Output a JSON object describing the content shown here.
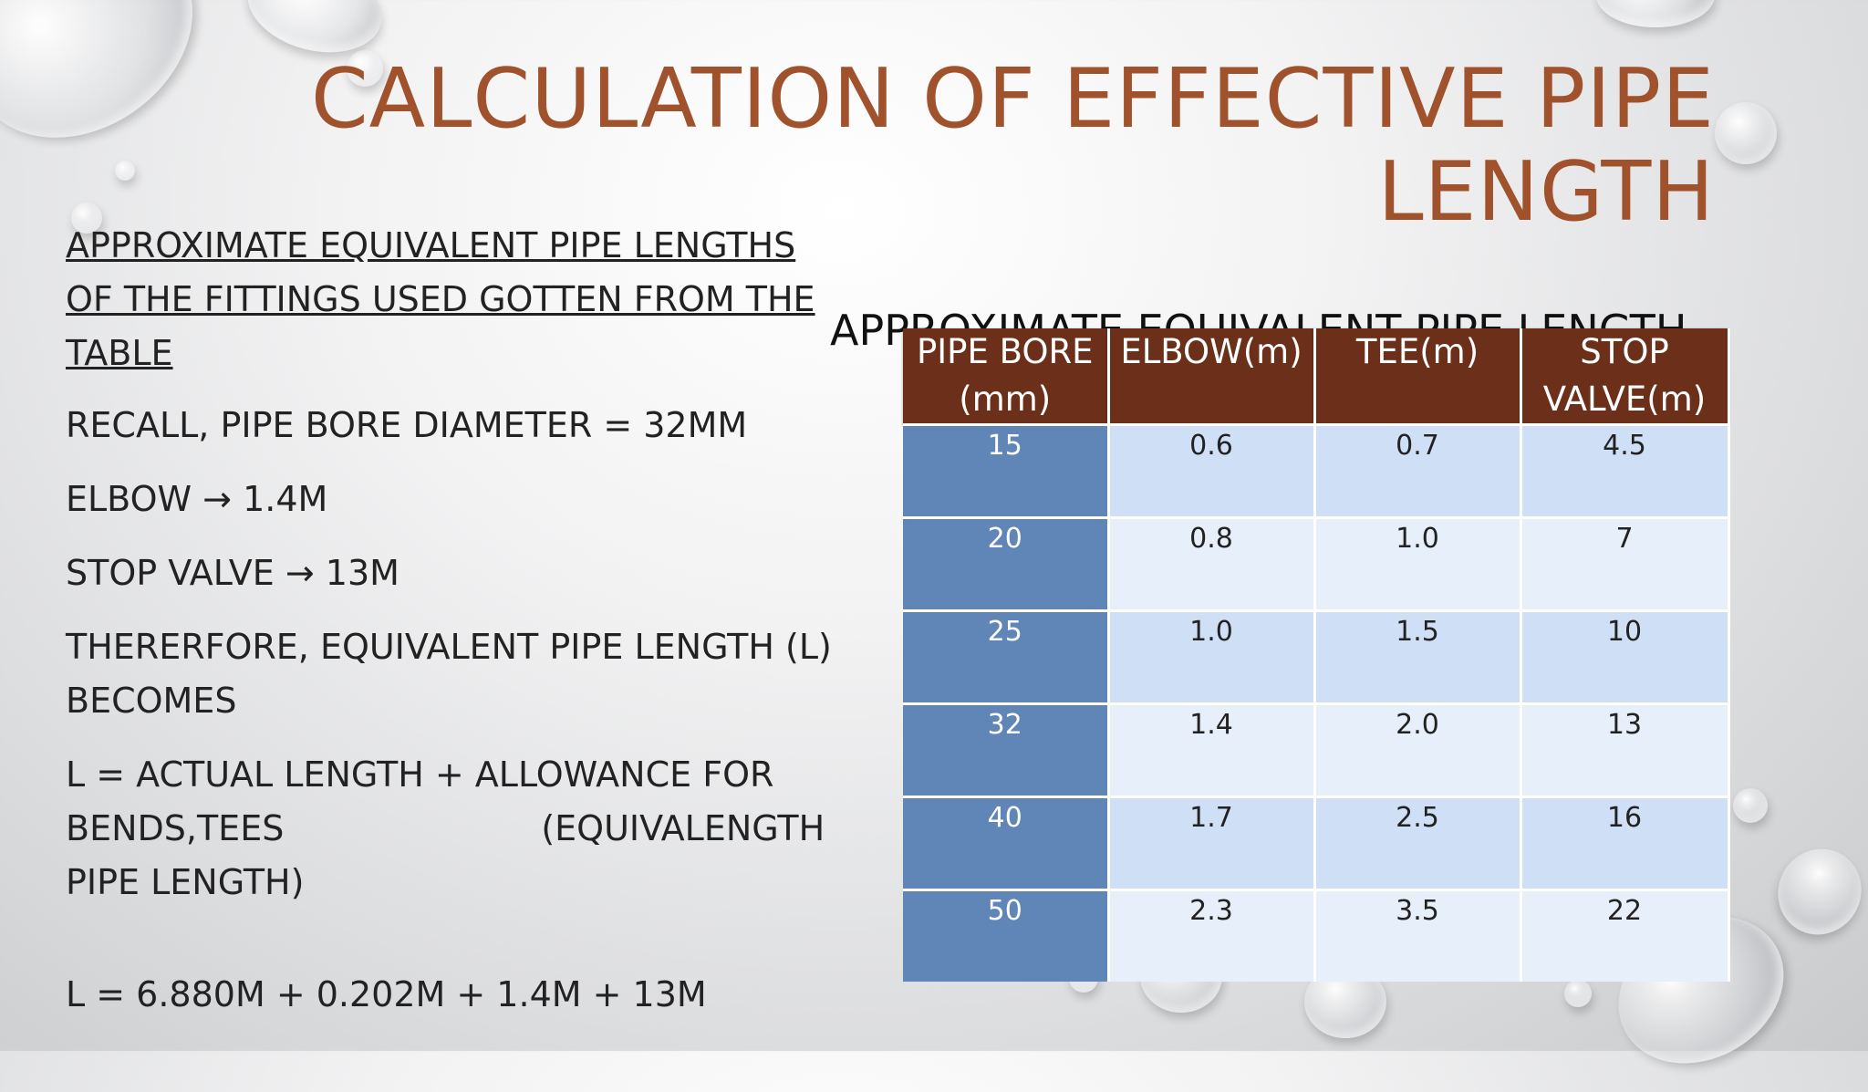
{
  "title": "CALCULATION OF EFFECTIVE PIPE LENGTH",
  "left": {
    "heading": "APPROXIMATE EQUIVALENT PIPE LENGTHS OF THE FITTINGS USED GOTTEN FROM THE TABLE",
    "recall": "RECALL, PIPE BORE DIAMETER = 32MM",
    "elbow": "ELBOW → 1.4M",
    "stop_valve": "STOP VALVE → 13M",
    "therefore": "THERERFORE, EQUIVALENT PIPE LENGTH (L) BECOMES",
    "formula_line1": "L = ACTUAL LENGTH + ALLOWANCE FOR",
    "formula_line2a": "BENDS,TEES",
    "formula_line2b": "(EQUIVALENGTH",
    "formula_line3": "PIPE LENGTH)",
    "calculation": "L = 6.880M + 0.202M + 1.4M + 13M"
  },
  "table_caption": "APPROXIMATE EQUIVALENT PIPE LENGTH",
  "table": {
    "headers": [
      "PIPE BORE (mm)",
      "ELBOW(m)",
      "TEE(m)",
      "STOP VALVE(m)"
    ],
    "rows": [
      [
        "15",
        "0.6",
        "0.7",
        "4.5"
      ],
      [
        "20",
        "0.8",
        "1.0",
        "7"
      ],
      [
        "25",
        "1.0",
        "1.5",
        "10"
      ],
      [
        "32",
        "1.4",
        "2.0",
        "13"
      ],
      [
        "40",
        "1.7",
        "2.5",
        "16"
      ],
      [
        "50",
        "2.3",
        "3.5",
        "22"
      ]
    ]
  }
}
